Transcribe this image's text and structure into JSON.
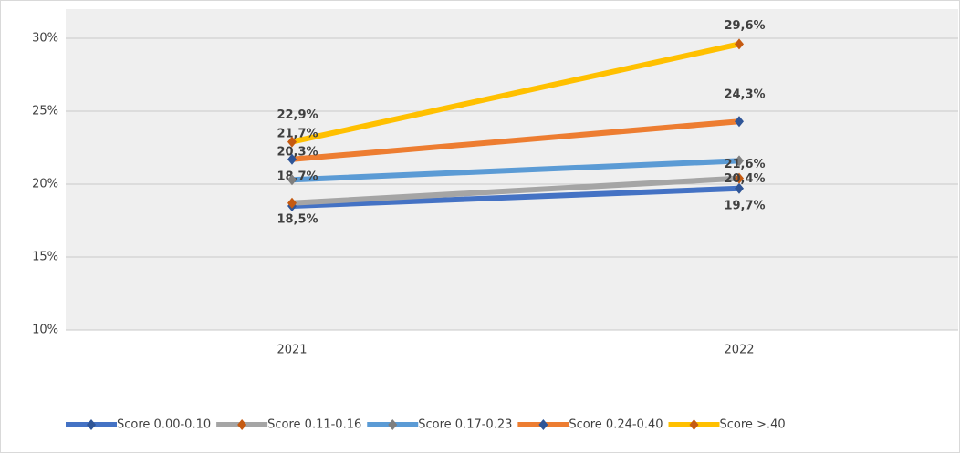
{
  "chart_data": {
    "type": "line",
    "categories": [
      "2021",
      "2022"
    ],
    "series": [
      {
        "name": "Score 0.00-0.10",
        "color": "#4472c4",
        "marker_color": "#2f5597",
        "values": [
          18.5,
          19.7
        ],
        "value_labels": [
          "18,5%",
          "19,7%"
        ]
      },
      {
        "name": "Score 0.11-0.16",
        "color": "#a5a5a5",
        "marker_color": "#c55a11",
        "values": [
          18.7,
          20.4
        ],
        "value_labels": [
          "18,7%",
          "20,4%"
        ]
      },
      {
        "name": "Score 0.17-0.23",
        "color": "#5b9bd5",
        "marker_color": "#7f7f7f",
        "values": [
          20.3,
          21.6
        ],
        "value_labels": [
          "20,3%",
          "21,6%"
        ]
      },
      {
        "name": "Score 0.24-0.40",
        "color": "#ed7d31",
        "marker_color": "#2f5597",
        "values": [
          21.7,
          24.3
        ],
        "value_labels": [
          "21,7%",
          "24,3%"
        ]
      },
      {
        "name": "Score >.40",
        "color": "#ffc000",
        "marker_color": "#c55a11",
        "values": [
          22.9,
          29.6
        ],
        "value_labels": [
          "22,9%",
          "29,6%"
        ]
      }
    ],
    "ylim": [
      10,
      30
    ],
    "yticks": [
      {
        "value": 10,
        "label": "10%"
      },
      {
        "value": 15,
        "label": "15%"
      },
      {
        "value": 20,
        "label": "20%"
      },
      {
        "value": 25,
        "label": "25%"
      },
      {
        "value": 30,
        "label": "30%"
      }
    ],
    "grid": true,
    "legend": "bottom"
  }
}
